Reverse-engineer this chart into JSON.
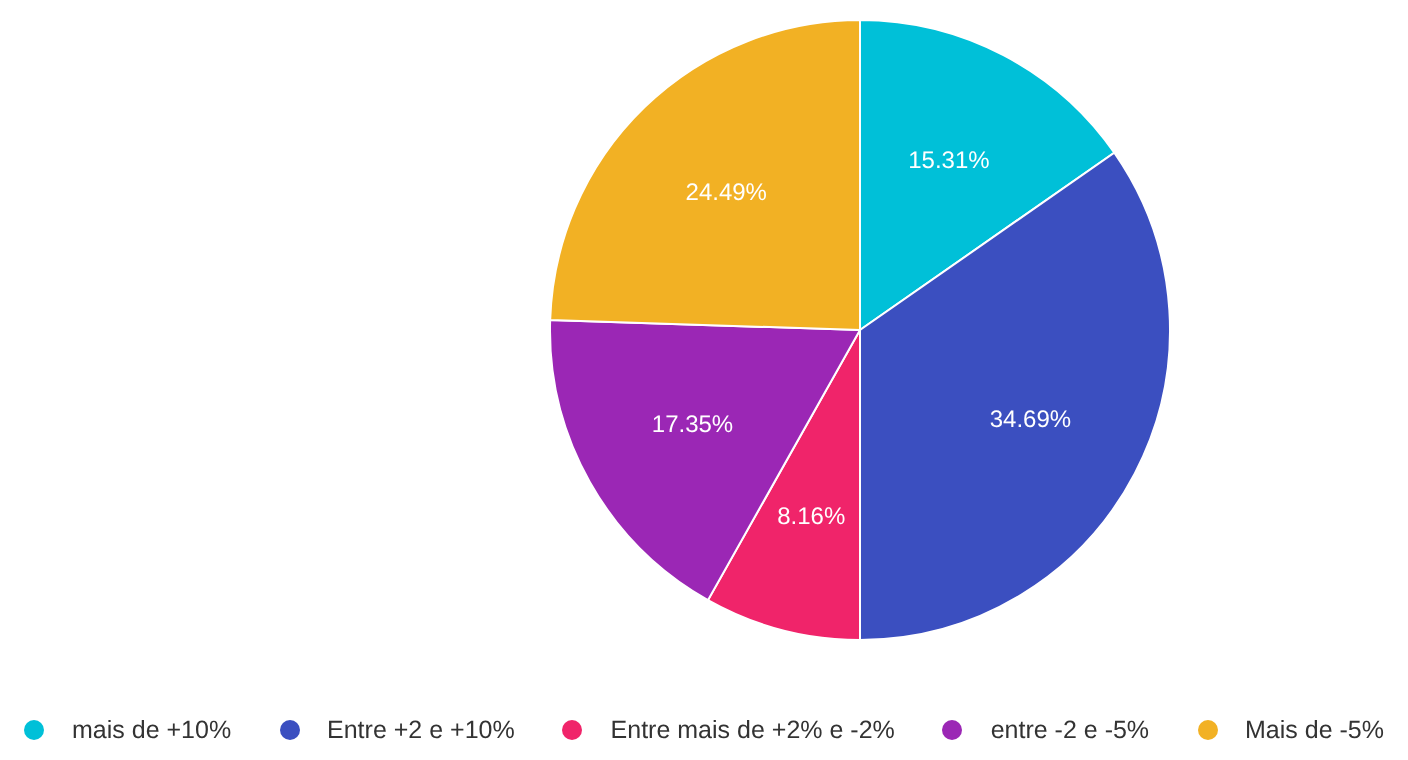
{
  "chart_data": {
    "type": "pie",
    "categories": [
      "mais de +10%",
      "Entre +2 e +10%",
      "Entre mais de +2% e -2%",
      "entre -2 e -5%",
      "Mais de -5%"
    ],
    "values": [
      15.31,
      34.69,
      8.16,
      17.35,
      24.49
    ],
    "colors": [
      "#00c0d8",
      "#3b4fc0",
      "#f0246a",
      "#9b27b5",
      "#f2b124"
    ],
    "value_labels": [
      "15.31%",
      "34.69%",
      "8.16%",
      "17.35%",
      "24.49%"
    ],
    "legend": "bottom"
  }
}
